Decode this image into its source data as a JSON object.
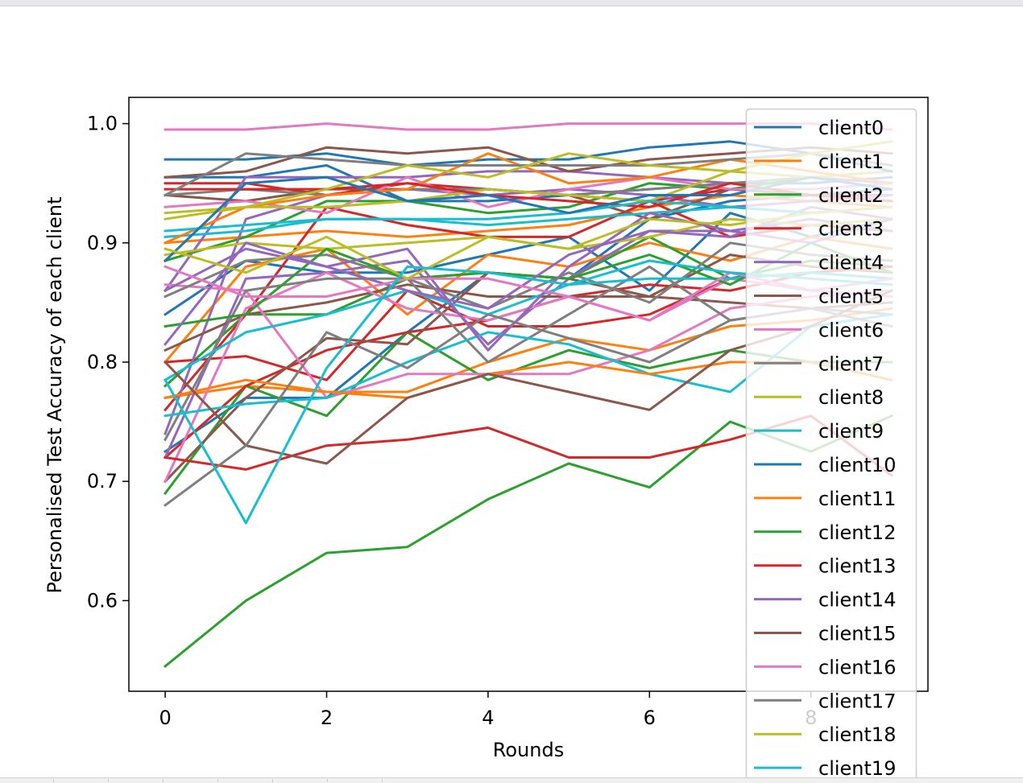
{
  "chart_data": {
    "type": "line",
    "title": "",
    "xlabel": "Rounds",
    "ylabel": "Personalised Test Accuracy of each client",
    "xlim": [
      -0.45,
      9.45
    ],
    "ylim": [
      0.524,
      1.022
    ],
    "xticks": [
      0,
      2,
      4,
      6,
      8
    ],
    "yticks": [
      0.6,
      0.7,
      0.8,
      0.9,
      1.0
    ],
    "xtick_labels": [
      "0",
      "2",
      "4",
      "6",
      "8"
    ],
    "ytick_labels": [
      "0.6",
      "0.7",
      "0.8",
      "0.9",
      "1.0"
    ],
    "grid": false,
    "legend": "upper right",
    "x": [
      0,
      1,
      2,
      3,
      4,
      5,
      6,
      7,
      8,
      9
    ],
    "series": [
      {
        "name": "client0",
        "color": "#1f77b4",
        "values": [
          0.97,
          0.97,
          0.975,
          0.965,
          0.97,
          0.97,
          0.98,
          0.985,
          0.975,
          0.96
        ]
      },
      {
        "name": "client1",
        "color": "#ff7f0e",
        "values": [
          0.9,
          0.93,
          0.94,
          0.945,
          0.975,
          0.95,
          0.955,
          0.97,
          0.96,
          0.95
        ]
      },
      {
        "name": "client2",
        "color": "#2ca02c",
        "values": [
          0.83,
          0.84,
          0.895,
          0.87,
          0.875,
          0.87,
          0.89,
          0.865,
          0.9,
          0.875
        ]
      },
      {
        "name": "client3",
        "color": "#d62728",
        "values": [
          0.945,
          0.945,
          0.945,
          0.95,
          0.94,
          0.935,
          0.93,
          0.95,
          0.94,
          0.935
        ]
      },
      {
        "name": "client4",
        "color": "#9467bd",
        "values": [
          0.815,
          0.9,
          0.88,
          0.86,
          0.845,
          0.89,
          0.91,
          0.905,
          0.93,
          0.92
        ]
      },
      {
        "name": "client5",
        "color": "#8c564b",
        "values": [
          0.955,
          0.96,
          0.98,
          0.975,
          0.98,
          0.96,
          0.97,
          0.975,
          0.98,
          0.975
        ]
      },
      {
        "name": "client6",
        "color": "#e377c2",
        "values": [
          0.995,
          0.995,
          1.0,
          0.995,
          0.995,
          1.0,
          1.0,
          1.0,
          1.0,
          0.995
        ]
      },
      {
        "name": "client7",
        "color": "#7f7f7f",
        "values": [
          0.94,
          0.975,
          0.97,
          0.965,
          0.965,
          0.965,
          0.965,
          0.97,
          0.975,
          0.965
        ]
      },
      {
        "name": "client8",
        "color": "#bcbd22",
        "values": [
          0.925,
          0.93,
          0.945,
          0.965,
          0.955,
          0.975,
          0.965,
          0.96,
          0.975,
          0.985
        ]
      },
      {
        "name": "client9",
        "color": "#17becf",
        "values": [
          0.91,
          0.915,
          0.92,
          0.92,
          0.92,
          0.925,
          0.935,
          0.93,
          0.925,
          0.93
        ]
      },
      {
        "name": "client10",
        "color": "#1f77b4",
        "values": [
          0.885,
          0.95,
          0.955,
          0.935,
          0.94,
          0.925,
          0.94,
          0.94,
          0.955,
          0.945
        ]
      },
      {
        "name": "client11",
        "color": "#ff7f0e",
        "values": [
          0.77,
          0.785,
          0.775,
          0.77,
          0.79,
          0.8,
          0.79,
          0.8,
          0.8,
          0.785
        ]
      },
      {
        "name": "client12",
        "color": "#2ca02c",
        "values": [
          0.545,
          0.6,
          0.64,
          0.645,
          0.685,
          0.715,
          0.695,
          0.75,
          0.725,
          0.755
        ]
      },
      {
        "name": "client13",
        "color": "#d62728",
        "values": [
          0.72,
          0.71,
          0.73,
          0.735,
          0.745,
          0.72,
          0.72,
          0.735,
          0.755,
          0.705
        ]
      },
      {
        "name": "client14",
        "color": "#9467bd",
        "values": [
          0.86,
          0.895,
          0.88,
          0.895,
          0.81,
          0.88,
          0.925,
          0.91,
          0.9,
          0.92
        ]
      },
      {
        "name": "client15",
        "color": "#8c564b",
        "values": [
          0.8,
          0.73,
          0.715,
          0.77,
          0.79,
          0.775,
          0.76,
          0.81,
          0.83,
          0.86
        ]
      },
      {
        "name": "client16",
        "color": "#e377c2",
        "values": [
          0.88,
          0.855,
          0.855,
          0.87,
          0.87,
          0.855,
          0.835,
          0.875,
          0.86,
          0.87
        ]
      },
      {
        "name": "client17",
        "color": "#7f7f7f",
        "values": [
          0.68,
          0.73,
          0.825,
          0.795,
          0.84,
          0.82,
          0.8,
          0.835,
          0.845,
          0.83
        ]
      },
      {
        "name": "client18",
        "color": "#bcbd22",
        "values": [
          0.895,
          0.875,
          0.905,
          0.87,
          0.905,
          0.895,
          0.92,
          0.915,
          0.925,
          0.93
        ]
      },
      {
        "name": "client19",
        "color": "#17becf",
        "values": [
          0.785,
          0.665,
          0.795,
          0.88,
          0.875,
          0.865,
          0.885,
          0.875,
          0.87,
          0.865
        ]
      }
    ],
    "extra_lines": [
      {
        "color": "#1f77b4",
        "values": [
          0.84,
          0.885,
          0.875,
          0.875,
          0.89,
          0.905,
          0.86,
          0.925,
          0.905,
          0.92
        ]
      },
      {
        "color": "#1f77b4",
        "values": [
          0.725,
          0.77,
          0.77,
          0.825,
          0.875,
          0.87,
          0.92,
          0.935,
          0.94,
          0.945
        ]
      },
      {
        "color": "#1f77b4",
        "values": [
          0.955,
          0.955,
          0.965,
          0.935,
          0.935,
          0.94,
          0.945,
          0.95,
          0.95,
          0.955
        ]
      },
      {
        "color": "#ff7f0e",
        "values": [
          0.8,
          0.88,
          0.895,
          0.84,
          0.89,
          0.88,
          0.9,
          0.885,
          0.905,
          0.895
        ]
      },
      {
        "color": "#ff7f0e",
        "values": [
          0.9,
          0.905,
          0.91,
          0.905,
          0.91,
          0.915,
          0.93,
          0.94,
          0.935,
          0.93
        ]
      },
      {
        "color": "#ff7f0e",
        "values": [
          0.77,
          0.78,
          0.775,
          0.775,
          0.8,
          0.82,
          0.81,
          0.83,
          0.835,
          0.845
        ]
      },
      {
        "color": "#2ca02c",
        "values": [
          0.78,
          0.84,
          0.84,
          0.87,
          0.875,
          0.87,
          0.905,
          0.87,
          0.885,
          0.88
        ]
      },
      {
        "color": "#2ca02c",
        "values": [
          0.69,
          0.78,
          0.755,
          0.825,
          0.785,
          0.81,
          0.795,
          0.81,
          0.8,
          0.8
        ]
      },
      {
        "color": "#2ca02c",
        "values": [
          0.885,
          0.905,
          0.935,
          0.935,
          0.925,
          0.93,
          0.95,
          0.945,
          0.955,
          0.95
        ]
      },
      {
        "color": "#d62728",
        "values": [
          0.76,
          0.84,
          0.93,
          0.915,
          0.905,
          0.905,
          0.935,
          0.905,
          0.915,
          0.91
        ]
      },
      {
        "color": "#d62728",
        "values": [
          0.8,
          0.805,
          0.785,
          0.86,
          0.83,
          0.83,
          0.84,
          0.87,
          0.875,
          0.87
        ]
      },
      {
        "color": "#d62728",
        "values": [
          0.72,
          0.78,
          0.81,
          0.825,
          0.835,
          0.855,
          0.865,
          0.86,
          0.875,
          0.88
        ]
      },
      {
        "color": "#d62728",
        "values": [
          0.95,
          0.95,
          0.94,
          0.95,
          0.945,
          0.94,
          0.935,
          0.945,
          0.94,
          0.94
        ]
      },
      {
        "color": "#9467bd",
        "values": [
          0.74,
          0.92,
          0.94,
          0.945,
          0.94,
          0.945,
          0.94,
          0.93,
          0.935,
          0.94
        ]
      },
      {
        "color": "#9467bd",
        "values": [
          0.72,
          0.87,
          0.875,
          0.885,
          0.815,
          0.87,
          0.91,
          0.91,
          0.92,
          0.91
        ]
      },
      {
        "color": "#9467bd",
        "values": [
          0.86,
          0.955,
          0.955,
          0.955,
          0.96,
          0.96,
          0.955,
          0.95,
          0.955,
          0.95
        ]
      },
      {
        "color": "#8c564b",
        "values": [
          0.94,
          0.935,
          0.945,
          0.945,
          0.945,
          0.94,
          0.92,
          0.945,
          0.94,
          0.935
        ]
      },
      {
        "color": "#8c564b",
        "values": [
          0.81,
          0.84,
          0.85,
          0.865,
          0.855,
          0.855,
          0.855,
          0.85,
          0.845,
          0.85
        ]
      },
      {
        "color": "#8c564b",
        "values": [
          0.7,
          0.77,
          0.82,
          0.815,
          0.875,
          0.87,
          0.855,
          0.89,
          0.88,
          0.875
        ]
      },
      {
        "color": "#e377c2",
        "values": [
          0.865,
          0.86,
          0.77,
          0.79,
          0.79,
          0.79,
          0.81,
          0.845,
          0.855,
          0.86
        ]
      },
      {
        "color": "#e377c2",
        "values": [
          0.7,
          0.845,
          0.875,
          0.845,
          0.835,
          0.855,
          0.835,
          0.87,
          0.86,
          0.855
        ]
      },
      {
        "color": "#e377c2",
        "values": [
          0.93,
          0.935,
          0.925,
          0.955,
          0.93,
          0.945,
          0.955,
          0.945,
          0.945,
          0.95
        ]
      },
      {
        "color": "#7f7f7f",
        "values": [
          0.735,
          0.86,
          0.87,
          0.87,
          0.8,
          0.84,
          0.88,
          0.835,
          0.845,
          0.84
        ]
      },
      {
        "color": "#7f7f7f",
        "values": [
          0.855,
          0.885,
          0.89,
          0.87,
          0.845,
          0.875,
          0.85,
          0.9,
          0.89,
          0.885
        ]
      },
      {
        "color": "#7f7f7f",
        "values": [
          0.94,
          0.945,
          0.94,
          0.945,
          0.945,
          0.94,
          0.945,
          0.95,
          0.955,
          0.945
        ]
      },
      {
        "color": "#bcbd22",
        "values": [
          0.92,
          0.93,
          0.93,
          0.935,
          0.945,
          0.94,
          0.935,
          0.96,
          0.955,
          0.96
        ]
      },
      {
        "color": "#bcbd22",
        "values": [
          0.89,
          0.9,
          0.895,
          0.9,
          0.905,
          0.895,
          0.905,
          0.92,
          0.915,
          0.92
        ]
      },
      {
        "color": "#17becf",
        "values": [
          0.755,
          0.765,
          0.77,
          0.8,
          0.825,
          0.815,
          0.79,
          0.775,
          0.83,
          0.84
        ]
      },
      {
        "color": "#17becf",
        "values": [
          0.785,
          0.825,
          0.84,
          0.86,
          0.84,
          0.865,
          0.87,
          0.87,
          0.875,
          0.87
        ]
      },
      {
        "color": "#17becf",
        "values": [
          0.905,
          0.91,
          0.92,
          0.92,
          0.915,
          0.92,
          0.925,
          0.93,
          0.925,
          0.93
        ]
      }
    ]
  }
}
